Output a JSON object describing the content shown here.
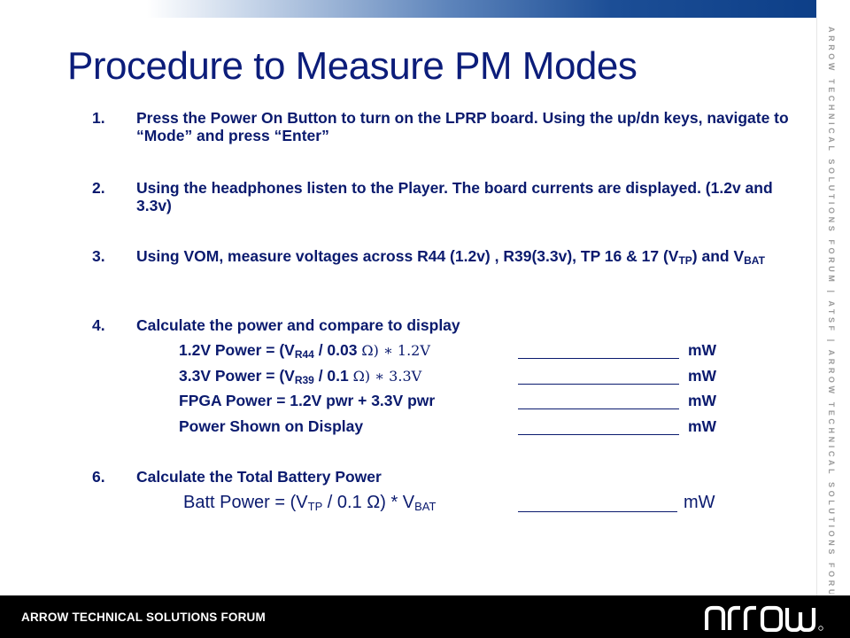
{
  "title": "Procedure to Measure PM Modes",
  "side_text": "ARROW TECHNICAL SOLUTIONS FORUM | ATSF | ARROW TECHNICAL SOLUTIONS FORUM",
  "steps": [
    {
      "num": "1.",
      "text": "Press the Power On Button to turn on the LPRP board. Using the up/dn keys, navigate to “Mode” and press “Enter”"
    },
    {
      "num": "2.",
      "text": "Using the headphones listen to the Player. The board currents are displayed. (1.2v and 3.3v)"
    },
    {
      "num": "3.",
      "text_a": "Using VOM, measure voltages across R44 (1.2v) , R39(3.3v), TP 16 & 17 (V",
      "sub_a": "TP",
      "text_b": ") and V",
      "sub_b": "BAT"
    },
    {
      "num": "4.",
      "text": "Calculate the power and compare to display"
    },
    {
      "num": "6.",
      "text": "Calculate the Total Battery Power"
    }
  ],
  "calc_rows": [
    {
      "pre": "1.2V Power = (V",
      "sub": "R44",
      "mid": " / 0.03 ",
      "tail": "Ω) ∗ 1.2V",
      "unit": "mW"
    },
    {
      "pre": "3.3V Power = (V",
      "sub": "R39",
      "mid": " / 0.1 ",
      "tail": "Ω) ∗ 3.3V",
      "unit": "mW"
    },
    {
      "label": "FPGA Power = 1.2V pwr + 3.3V pwr",
      "unit": "mW"
    },
    {
      "label": "Power Shown on Display",
      "unit": "mW"
    }
  ],
  "batt": {
    "pre": "Batt Power = (V",
    "sub1": "TP",
    "mid": " / 0.1 Ω)  * V",
    "sub2": "BAT",
    "unit": "mW"
  },
  "footer": {
    "text": "ARROW TECHNICAL SOLUTIONS FORUM",
    "logo_text": "ARROW"
  }
}
